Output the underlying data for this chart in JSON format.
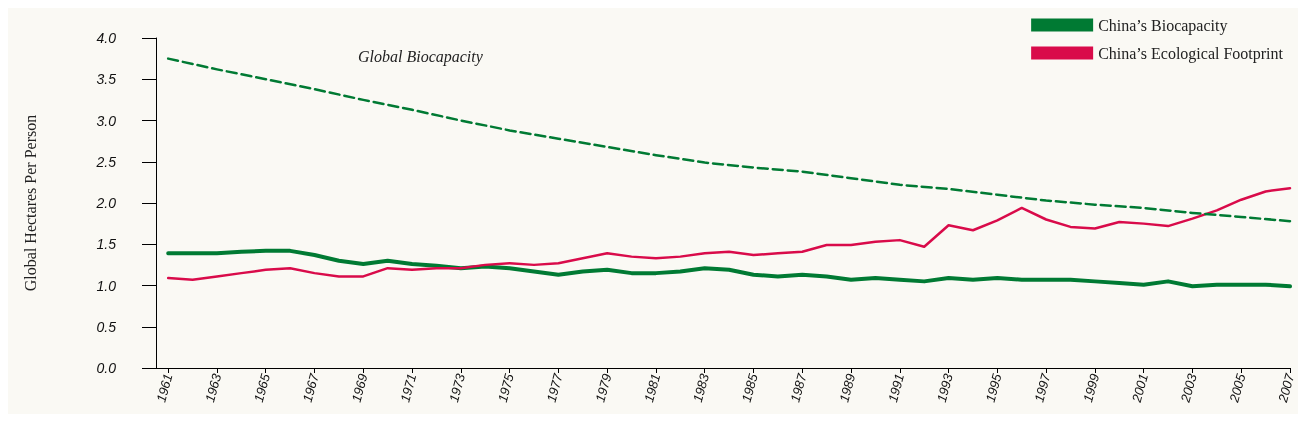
{
  "chart_data": {
    "type": "line",
    "ylabel": "Global Hectares Per Person",
    "x": [
      1961,
      1962,
      1963,
      1964,
      1965,
      1966,
      1967,
      1968,
      1969,
      1970,
      1971,
      1972,
      1973,
      1974,
      1975,
      1976,
      1977,
      1978,
      1979,
      1980,
      1981,
      1982,
      1983,
      1984,
      1985,
      1986,
      1987,
      1988,
      1989,
      1990,
      1991,
      1992,
      1993,
      1994,
      1995,
      1996,
      1997,
      1998,
      1999,
      2000,
      2001,
      2002,
      2003,
      2004,
      2005,
      2006,
      2007
    ],
    "series": [
      {
        "name": "China’s Biocapacity",
        "color": "#007a33",
        "values": [
          1.39,
          1.39,
          1.39,
          1.41,
          1.42,
          1.42,
          1.37,
          1.3,
          1.26,
          1.3,
          1.26,
          1.24,
          1.21,
          1.23,
          1.21,
          1.17,
          1.13,
          1.17,
          1.19,
          1.15,
          1.15,
          1.17,
          1.21,
          1.19,
          1.13,
          1.11,
          1.13,
          1.11,
          1.07,
          1.09,
          1.07,
          1.05,
          1.09,
          1.07,
          1.09,
          1.07,
          1.07,
          1.07,
          1.05,
          1.03,
          1.01,
          1.05,
          0.99,
          1.01,
          1.01,
          1.01,
          0.99
        ]
      },
      {
        "name": "China’s Ecological Footprint",
        "color": "#d90b4a",
        "values": [
          1.09,
          1.07,
          1.11,
          1.15,
          1.19,
          1.21,
          1.15,
          1.11,
          1.11,
          1.21,
          1.19,
          1.21,
          1.21,
          1.25,
          1.27,
          1.25,
          1.27,
          1.33,
          1.39,
          1.35,
          1.33,
          1.35,
          1.39,
          1.41,
          1.37,
          1.39,
          1.41,
          1.49,
          1.49,
          1.53,
          1.55,
          1.47,
          1.73,
          1.67,
          1.79,
          1.94,
          1.8,
          1.71,
          1.69,
          1.77,
          1.75,
          1.72,
          1.81,
          1.91,
          2.04,
          2.14,
          2.18
        ]
      },
      {
        "color": "#007a33",
        "line_style": "dashed",
        "x": [
          1961,
          1963,
          1965,
          1967,
          1969,
          1971,
          1973,
          1975,
          1977,
          1979,
          1981,
          1983,
          1985,
          1987,
          1989,
          1991,
          1993,
          1995,
          1997,
          1999,
          2001,
          2003,
          2005,
          2007
        ],
        "values": [
          3.75,
          3.62,
          3.5,
          3.38,
          3.25,
          3.13,
          3.0,
          2.88,
          2.78,
          2.68,
          2.58,
          2.49,
          2.43,
          2.38,
          2.3,
          2.22,
          2.17,
          2.1,
          2.03,
          1.98,
          1.94,
          1.88,
          1.83,
          1.78
        ]
      }
    ],
    "annotations": [
      "Global Biocapacity"
    ],
    "xlim": [
      1960.5,
      2007
    ],
    "xticks": [
      1961,
      1963,
      1965,
      1967,
      1969,
      1971,
      1973,
      1975,
      1977,
      1979,
      1981,
      1983,
      1985,
      1987,
      1989,
      1991,
      1993,
      1995,
      1997,
      1999,
      2001,
      2003,
      2005,
      2007
    ],
    "ylim": [
      0,
      4
    ],
    "yticks": [
      {
        "value": 0,
        "label": "0.0"
      },
      {
        "value": 0.5,
        "label": "0.5"
      },
      {
        "value": 1,
        "label": "1.0"
      },
      {
        "value": 1.5,
        "label": "1.5"
      },
      {
        "value": 2,
        "label": "2.0"
      },
      {
        "value": 2.5,
        "label": "2.5"
      },
      {
        "value": 3,
        "label": "3.0"
      },
      {
        "value": 3.5,
        "label": "3.5"
      },
      {
        "value": 4,
        "label": "4.0"
      }
    ],
    "grid": false,
    "legend": "top right",
    "marker": "none",
    "line_style": "solid"
  }
}
